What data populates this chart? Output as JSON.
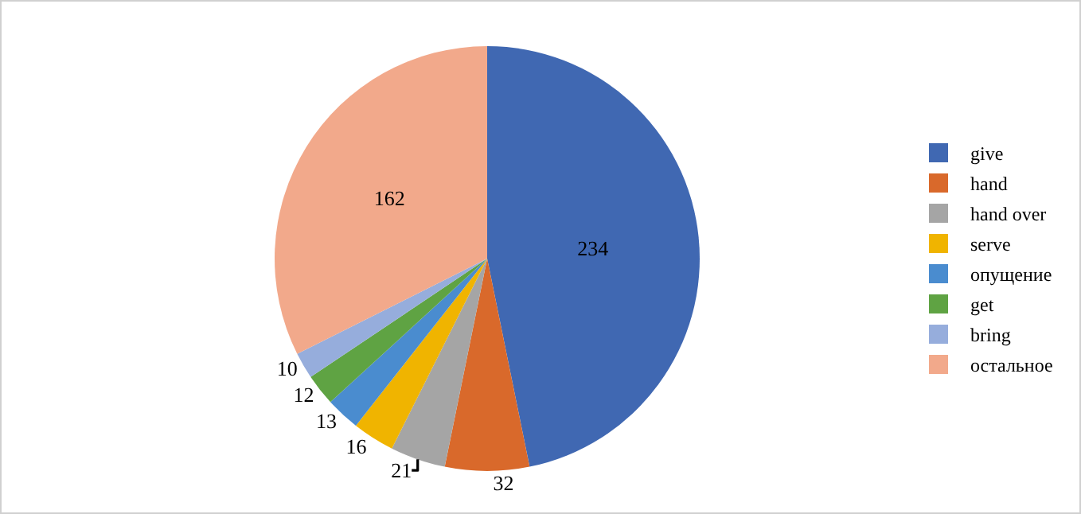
{
  "chart_data": {
    "type": "pie",
    "categories": [
      "give",
      "hand",
      "hand over",
      "serve",
      "опущение",
      "get",
      "bring",
      "остальное"
    ],
    "values": [
      234,
      32,
      21,
      16,
      13,
      12,
      10,
      162
    ],
    "colors": [
      "#4068b2",
      "#d9692b",
      "#a5a5a5",
      "#f0b400",
      "#4a8ccf",
      "#5fa343",
      "#96addc",
      "#f2a98b"
    ],
    "data_labels": true,
    "legend": "right"
  }
}
